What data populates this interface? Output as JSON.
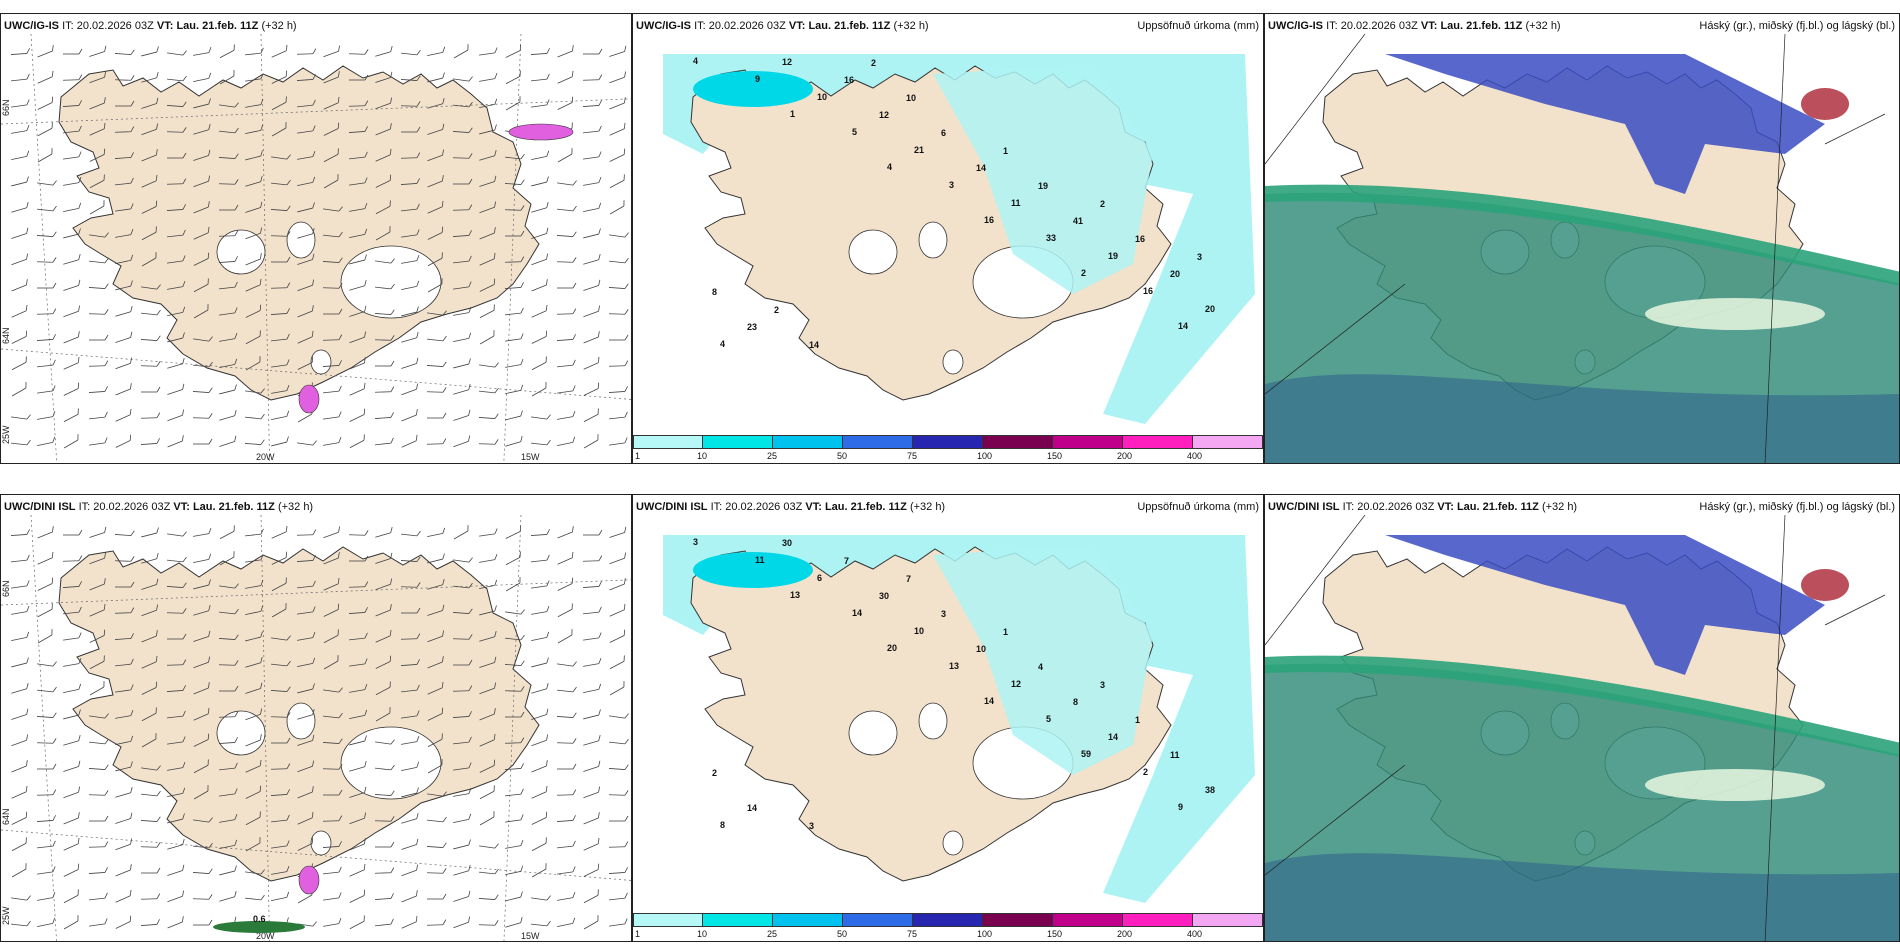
{
  "rows": [
    {
      "panels": [
        {
          "model": "UWC/IG-IS",
          "it_label": "IT:",
          "it": "20.02.2026 03Z",
          "vt_label": "VT:",
          "vt": "Lau. 21.feb. 11Z",
          "lead": "(+32 h)",
          "right_title": ""
        },
        {
          "model": "UWC/IG-IS",
          "it_label": "IT:",
          "it": "20.02.2026 03Z",
          "vt_label": "VT:",
          "vt": "Lau. 21.feb. 11Z",
          "lead": "(+32 h)",
          "right_title": "Uppsöfnuð úrkoma (mm)"
        },
        {
          "model": "UWC/IG-IS",
          "it_label": "IT:",
          "it": "20.02.2026 03Z",
          "vt_label": "VT:",
          "vt": "Lau. 21.feb. 11Z",
          "lead": "(+32 h)",
          "right_title": "Háský (gr.), miðský (fj.bl.) og lágský (bl.)"
        }
      ]
    },
    {
      "panels": [
        {
          "model": "UWC/DINI ISL",
          "it_label": "IT:",
          "it": "20.02.2026 03Z",
          "vt_label": "VT:",
          "vt": "Lau. 21.feb. 11Z",
          "lead": "(+32 h)",
          "right_title": ""
        },
        {
          "model": "UWC/DINI ISL",
          "it_label": "IT:",
          "it": "20.02.2026 03Z",
          "vt_label": "VT:",
          "vt": "Lau. 21.feb. 11Z",
          "lead": "(+32 h)",
          "right_title": "Uppsöfnuð úrkoma (mm)"
        },
        {
          "model": "UWC/DINI ISL",
          "it_label": "IT:",
          "it": "20.02.2026 03Z",
          "vt_label": "VT:",
          "vt": "Lau. 21.feb. 11Z",
          "lead": "(+32 h)",
          "right_title": "Háský (gr.), miðský (fj.bl.) og lágský (bl.)"
        }
      ]
    }
  ],
  "grid_labels": {
    "lat66": "66N",
    "lat64": "64N",
    "lon25": "25W",
    "lon20": "20W",
    "lon15": "15W"
  },
  "extra_labels": {
    "value_0_6": "0.6"
  },
  "precip_values_top": [
    "4",
    "1",
    "4",
    "16",
    "2",
    "14",
    "9",
    "5",
    "3",
    "33",
    "16",
    "4",
    "10",
    "21",
    "11",
    "19",
    "20",
    "12",
    "12",
    "14",
    "41",
    "20",
    "23",
    "16",
    "6",
    "19",
    "16",
    "8",
    "14",
    "10",
    "1",
    "2",
    "3",
    "2",
    "2"
  ],
  "precip_values_bottom": [
    "3",
    "13",
    "20",
    "14",
    "59",
    "9",
    "11",
    "14",
    "13",
    "5",
    "2",
    "8",
    "6",
    "10",
    "12",
    "14",
    "38",
    "30",
    "30",
    "10",
    "8",
    "11",
    "14",
    "7",
    "3",
    "4",
    "1",
    "2",
    "3",
    "7",
    "1",
    "3"
  ],
  "colorbar": {
    "labels": [
      "1",
      "10",
      "25",
      "50",
      "75",
      "100",
      "150",
      "200",
      "400"
    ],
    "colors": [
      "#b6f7f7",
      "#00e6e6",
      "#00c2ee",
      "#2e6be6",
      "#2626b0",
      "#7a0050",
      "#c0008a",
      "#ff1fbf",
      "#f4a8f4"
    ]
  },
  "colors": {
    "land": "#f2e2cc",
    "precip_light": "#aef3f3",
    "cloud_low": "#2f8b78",
    "cloud_mid": "#2aa37a",
    "cloud_high": "#3a4cc2",
    "cloud_red": "#b03040"
  }
}
